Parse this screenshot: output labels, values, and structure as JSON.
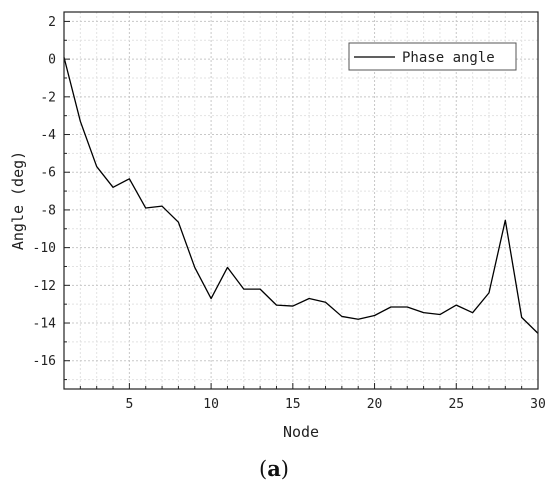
{
  "caption": {
    "open": "(",
    "letter": "a",
    "close": ")"
  },
  "chart_data": {
    "type": "line",
    "xlabel": "Node",
    "ylabel": "Angle (deg)",
    "xlim": [
      1,
      30
    ],
    "ylim": [
      -17.5,
      2.5
    ],
    "xticks": [
      5,
      10,
      15,
      20,
      25,
      30
    ],
    "yticks": [
      2,
      0,
      -2,
      -4,
      -6,
      -8,
      -10,
      -12,
      -14,
      -16
    ],
    "grid": true,
    "legend_position": "top-right",
    "line_color": "#000000",
    "series": [
      {
        "name": "Phase angle",
        "x": [
          1,
          2,
          3,
          4,
          5,
          6,
          7,
          8,
          9,
          10,
          11,
          12,
          13,
          14,
          15,
          16,
          17,
          18,
          19,
          20,
          21,
          22,
          23,
          24,
          25,
          26,
          27,
          28,
          29,
          30
        ],
        "values": [
          0.1,
          -3.3,
          -5.7,
          -6.8,
          -6.35,
          -7.9,
          -7.8,
          -8.65,
          -11.05,
          -12.7,
          -11.05,
          -12.2,
          -12.2,
          -13.05,
          -13.1,
          -12.7,
          -12.9,
          -13.65,
          -13.8,
          -13.6,
          -13.15,
          -13.15,
          -13.45,
          -13.55,
          -13.05,
          -13.45,
          -12.4,
          -8.55,
          -13.7,
          -14.55
        ]
      }
    ]
  }
}
